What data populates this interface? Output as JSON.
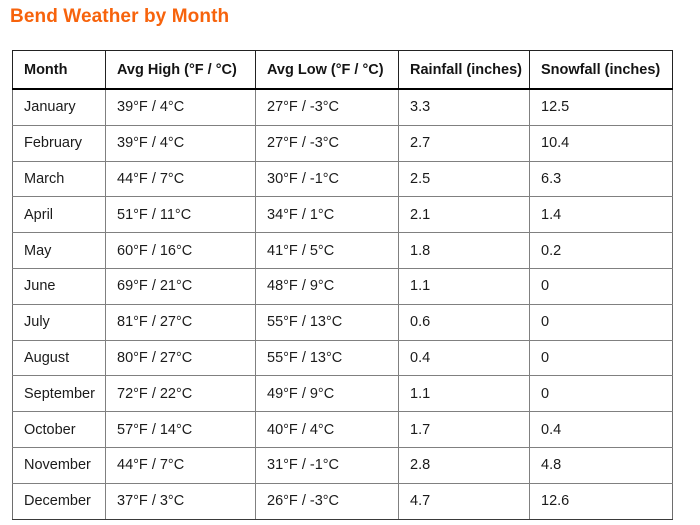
{
  "page": {
    "title": "Bend Weather by Month",
    "title_color": "#F7630C"
  },
  "table": {
    "columns": [
      "Month",
      "Avg High (°F / °C)",
      "Avg Low (°F / °C)",
      "Rainfall (inches)",
      "Snowfall (inches)"
    ],
    "rows": [
      [
        "January",
        "39°F / 4°C",
        "27°F / -3°C",
        "3.3",
        "12.5"
      ],
      [
        "February",
        "39°F / 4°C",
        "27°F / -3°C",
        "2.7",
        "10.4"
      ],
      [
        "March",
        "44°F / 7°C",
        "30°F / -1°C",
        "2.5",
        "6.3"
      ],
      [
        "April",
        "51°F / 11°C",
        "34°F / 1°C",
        "2.1",
        "1.4"
      ],
      [
        "May",
        "60°F / 16°C",
        "41°F / 5°C",
        "1.8",
        "0.2"
      ],
      [
        "June",
        "69°F / 21°C",
        "48°F / 9°C",
        "1.1",
        "0"
      ],
      [
        "July",
        "81°F / 27°C",
        "55°F / 13°C",
        "0.6",
        "0"
      ],
      [
        "August",
        "80°F / 27°C",
        "55°F / 13°C",
        "0.4",
        "0"
      ],
      [
        "September",
        "72°F / 22°C",
        "49°F / 9°C",
        "1.1",
        "0"
      ],
      [
        "October",
        "57°F / 14°C",
        "40°F / 4°C",
        "1.7",
        "0.4"
      ],
      [
        "November",
        "44°F / 7°C",
        "31°F / -1°C",
        "2.8",
        "4.8"
      ],
      [
        "December",
        "37°F / 3°C",
        "26°F / -3°C",
        "4.7",
        "12.6"
      ]
    ]
  }
}
